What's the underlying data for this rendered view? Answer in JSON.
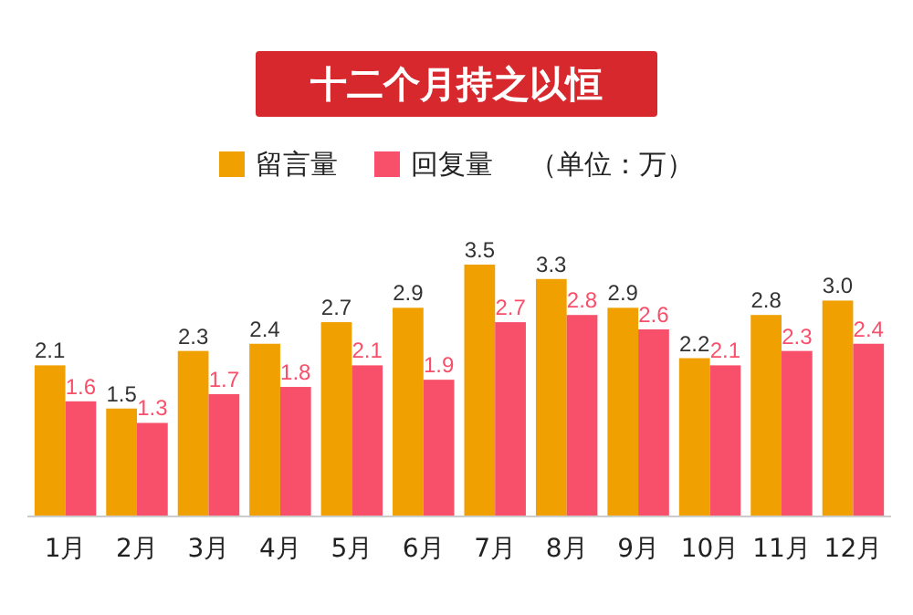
{
  "chart_data": {
    "type": "bar",
    "title": "十二个月持之以恒",
    "annotations": [
      "（单位：万）"
    ],
    "categories": [
      "1月",
      "2月",
      "3月",
      "4月",
      "5月",
      "6月",
      "7月",
      "8月",
      "9月",
      "10月",
      "11月",
      "12月"
    ],
    "series": [
      {
        "name": "留言量",
        "color": "#f0a000",
        "values": [
          2.1,
          1.5,
          2.3,
          2.4,
          2.7,
          2.9,
          3.5,
          3.3,
          2.9,
          2.2,
          2.8,
          3.0
        ],
        "value_labels": [
          "2.1",
          "1.5",
          "2.3",
          "2.4",
          "2.7",
          "2.9",
          "3.5",
          "3.3",
          "2.9",
          "2.2",
          "2.8",
          "3.0"
        ]
      },
      {
        "name": "回复量",
        "color": "#f8506a",
        "values": [
          1.6,
          1.3,
          1.7,
          1.8,
          2.1,
          1.9,
          2.7,
          2.8,
          2.6,
          2.1,
          2.3,
          2.4
        ]
      }
    ],
    "data_labels": true,
    "legend": "top",
    "grid": false
  }
}
